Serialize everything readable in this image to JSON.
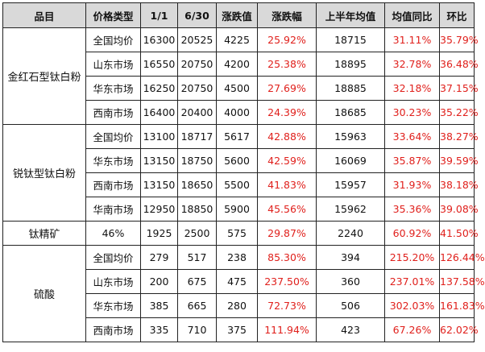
{
  "headers": [
    "品目",
    "价格类型",
    "1/1",
    "6/30",
    "涨跌值",
    "涨跌幅",
    "上半年均值",
    "均值同比",
    "环比"
  ],
  "groups": [
    {
      "product": "金红石型钛白粉",
      "rows": [
        [
          "全国均价",
          "16300",
          "20525",
          "4225",
          "25.92%",
          "18715",
          "31.11%",
          "35.79%"
        ],
        [
          "山东市场",
          "16550",
          "20750",
          "4200",
          "25.38%",
          "18895",
          "32.78%",
          "36.48%"
        ],
        [
          "华东市场",
          "16250",
          "20750",
          "4500",
          "27.69%",
          "18885",
          "32.18%",
          "37.15%"
        ],
        [
          "西南市场",
          "16400",
          "20400",
          "4000",
          "24.39%",
          "18685",
          "30.23%",
          "35.22%"
        ]
      ]
    },
    {
      "product": "锐钛型钛白粉",
      "rows": [
        [
          "全国均价",
          "13100",
          "18717",
          "5617",
          "42.88%",
          "15963",
          "33.64%",
          "38.27%"
        ],
        [
          "华东市场",
          "13150",
          "18750",
          "5600",
          "42.59%",
          "16069",
          "35.87%",
          "39.59%"
        ],
        [
          "西南市场",
          "13150",
          "18650",
          "5500",
          "41.83%",
          "15957",
          "31.93%",
          "38.18%"
        ],
        [
          "华南市场",
          "12950",
          "18850",
          "5900",
          "45.56%",
          "15962",
          "35.36%",
          "39.08%"
        ]
      ]
    },
    {
      "product": "钛精矿",
      "rows": [
        [
          "46%",
          "1925",
          "2500",
          "575",
          "29.87%",
          "2240",
          "60.92%",
          "41.50%"
        ]
      ]
    },
    {
      "product": "硫酸",
      "rows": [
        [
          "全国均价",
          "279",
          "517",
          "238",
          "85.30%",
          "394",
          "215.20%",
          "126.44%"
        ],
        [
          "山东市场",
          "200",
          "675",
          "475",
          "237.50%",
          "360",
          "237.01%",
          "137.58%"
        ],
        [
          "华东市场",
          "385",
          "665",
          "280",
          "72.73%",
          "506",
          "302.03%",
          "161.83%"
        ],
        [
          "西南市场",
          "335",
          "710",
          "375",
          "111.94%",
          "423",
          "67.26%",
          "62.02%"
        ]
      ]
    }
  ],
  "colors": {
    "header_bg": "#d9d9d9",
    "red_text": "#e0201c",
    "border": "#222222"
  }
}
